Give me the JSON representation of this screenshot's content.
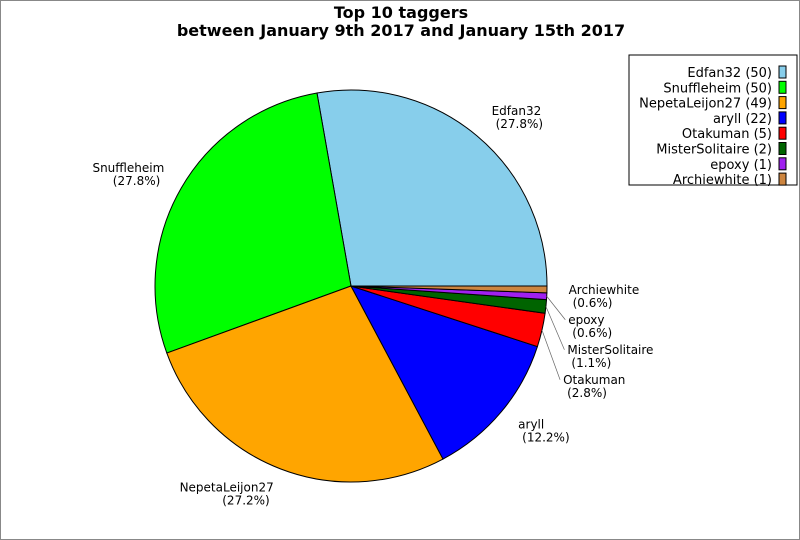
{
  "chart_data": {
    "type": "pie",
    "title": "Top 10 taggers",
    "subtitle": "between January 9th 2017 and January 15th 2017",
    "legend_placement": "top-right",
    "start_angle_deg": 0,
    "direction": "counterclockwise",
    "slices": [
      {
        "name": "Edfan32",
        "value": 50,
        "percent": "27.8%",
        "legend": "Edfan32 (50)",
        "color": "#87ceeb"
      },
      {
        "name": "Snuffleheim",
        "value": 50,
        "percent": "27.8%",
        "legend": "Snuffleheim (50)",
        "color": "#00ff00"
      },
      {
        "name": "NepetaLeijon27",
        "value": 49,
        "percent": "27.2%",
        "legend": "NepetaLeijon27 (49)",
        "color": "#ffa500"
      },
      {
        "name": "aryll",
        "value": 22,
        "percent": "12.2%",
        "legend": "aryll (22)",
        "color": "#0000ff"
      },
      {
        "name": "Otakuman",
        "value": 5,
        "percent": "2.8%",
        "legend": "Otakuman (5)",
        "color": "#ff0000"
      },
      {
        "name": "MisterSolitaire",
        "value": 2,
        "percent": "1.1%",
        "legend": "MisterSolitaire (2)",
        "color": "#006400"
      },
      {
        "name": "epoxy",
        "value": 1,
        "percent": "0.6%",
        "legend": "epoxy (1)",
        "color": "#a020f0"
      },
      {
        "name": "Archiewhite",
        "value": 1,
        "percent": "0.6%",
        "legend": "Archiewhite (1)",
        "color": "#cd853f"
      }
    ]
  }
}
